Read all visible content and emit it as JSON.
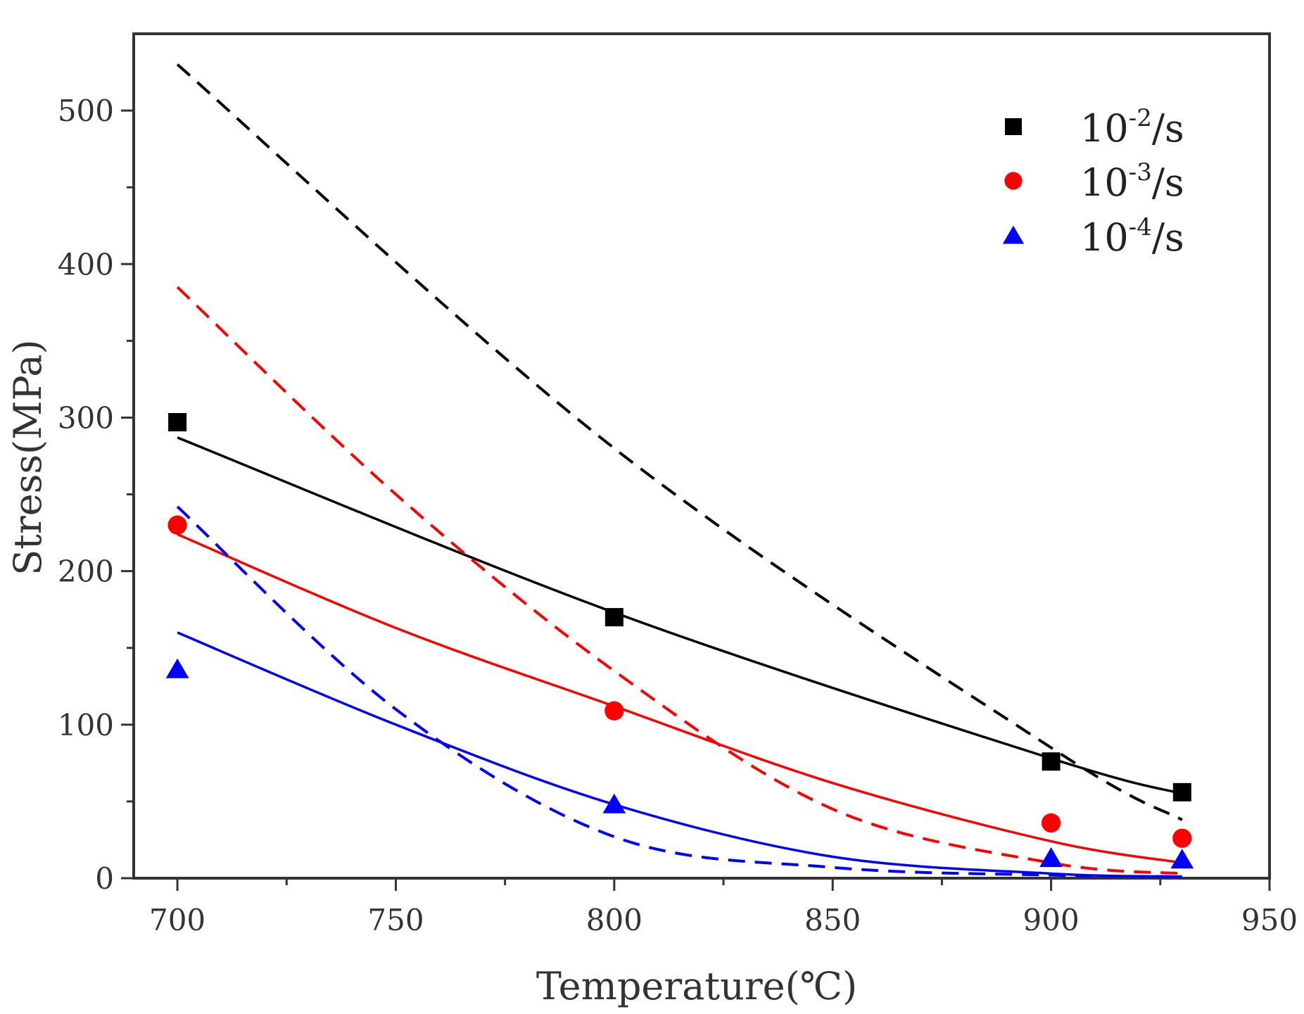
{
  "chart_data": {
    "type": "scatter",
    "title": "",
    "xlabel": "Temperature(℃)",
    "ylabel": "Stress(MPa)",
    "xlim": [
      690,
      950
    ],
    "ylim": [
      0,
      550
    ],
    "xticks": [
      700,
      750,
      800,
      850,
      900,
      950
    ],
    "yticks": [
      0,
      100,
      200,
      300,
      400,
      500
    ],
    "grid": false,
    "legend_position": "top-right",
    "series": [
      {
        "name": "10-2/s",
        "legend_base": "10",
        "legend_exp": "-2",
        "legend_unit": "/s",
        "color": "#000000",
        "marker": "square",
        "points": [
          [
            700,
            297
          ],
          [
            800,
            170
          ],
          [
            900,
            76
          ],
          [
            930,
            56
          ]
        ],
        "fit_solid": [
          [
            700,
            287
          ],
          [
            800,
            173
          ],
          [
            900,
            78
          ],
          [
            930,
            55
          ]
        ],
        "fit_dashed": [
          [
            700,
            530
          ],
          [
            800,
            280
          ],
          [
            900,
            85
          ],
          [
            930,
            38
          ]
        ]
      },
      {
        "name": "10-3/s",
        "legend_base": "10",
        "legend_exp": "-3",
        "legend_unit": "/s",
        "color": "#ff0000",
        "marker": "circle",
        "points": [
          [
            700,
            230
          ],
          [
            800,
            109
          ],
          [
            900,
            36
          ],
          [
            930,
            26
          ]
        ],
        "fit_solid": [
          [
            700,
            224
          ],
          [
            750,
            163
          ],
          [
            800,
            112
          ],
          [
            850,
            62
          ],
          [
            900,
            24
          ],
          [
            930,
            10
          ]
        ],
        "fit_dashed": [
          [
            700,
            385
          ],
          [
            750,
            250
          ],
          [
            800,
            135
          ],
          [
            850,
            45
          ],
          [
            900,
            10
          ],
          [
            930,
            3
          ]
        ]
      },
      {
        "name": "10-4/s",
        "legend_base": "10",
        "legend_exp": "-4",
        "legend_unit": "/s",
        "color": "#0000ff",
        "marker": "triangle",
        "points": [
          [
            700,
            136
          ],
          [
            800,
            48
          ],
          [
            900,
            13
          ],
          [
            930,
            12
          ]
        ],
        "fit_solid": [
          [
            700,
            160
          ],
          [
            750,
            100
          ],
          [
            800,
            48
          ],
          [
            850,
            14
          ],
          [
            900,
            3
          ],
          [
            930,
            1
          ]
        ],
        "fit_dashed": [
          [
            700,
            242
          ],
          [
            750,
            110
          ],
          [
            800,
            27
          ],
          [
            850,
            7
          ],
          [
            900,
            2
          ],
          [
            930,
            1
          ]
        ]
      }
    ]
  }
}
